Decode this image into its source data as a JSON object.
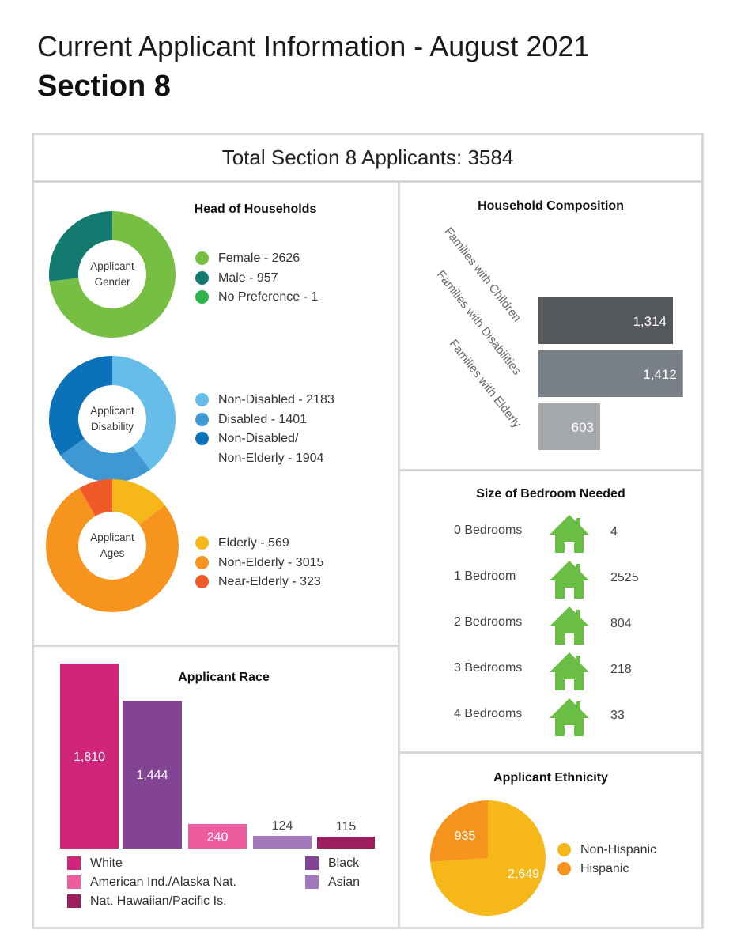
{
  "header": {
    "title": "Current Applicant Information - August 2021",
    "subtitle": "Section 8",
    "total": "Total Section 8 Applicants: 3584"
  },
  "head_of_households": {
    "title": "Head of Households"
  },
  "chart_data": [
    {
      "id": "gender",
      "type": "pie",
      "center_label": [
        "Applicant",
        "Gender"
      ],
      "slices": [
        {
          "name": "No Preference",
          "value": 1,
          "color": "#2db34a",
          "legend": "No Preference - 1"
        },
        {
          "name": "Female",
          "value": 2626,
          "color": "#76bf43",
          "legend": "Female - 2626"
        },
        {
          "name": "Male",
          "value": 957,
          "color": "#127a6f",
          "legend": "Male - 957"
        }
      ],
      "legend_order": [
        1,
        2,
        0
      ]
    },
    {
      "id": "disability",
      "type": "pie",
      "center_label": [
        "Applicant",
        "Disability"
      ],
      "slices": [
        {
          "name": "Non-Disabled",
          "value": 2183,
          "color": "#67bdea",
          "legend": "Non-Disabled - 2183"
        },
        {
          "name": "Disabled",
          "value": 1401,
          "color": "#3f97d4",
          "legend": "Disabled - 1401"
        },
        {
          "name": "Non-Disabled/ Non-Elderly",
          "value": 1904,
          "color": "#0b72b9",
          "legend": "Non-Disabled/",
          "legend2": "Non-Elderly - 1904"
        }
      ],
      "legend_order": [
        0,
        1,
        2
      ]
    },
    {
      "id": "ages",
      "type": "pie",
      "center_label": [
        "Applicant",
        "Ages"
      ],
      "slices": [
        {
          "name": "Elderly",
          "value": 569,
          "color": "#f6b719",
          "legend": "Elderly - 569"
        },
        {
          "name": "Non-Elderly",
          "value": 3015,
          "color": "#f7941e",
          "legend": "Non-Elderly - 3015"
        },
        {
          "name": "Near-Elderly",
          "value": 323,
          "color": "#f05a28",
          "legend": "Near-Elderly - 323"
        }
      ],
      "legend_order": [
        0,
        1,
        2
      ]
    },
    {
      "id": "household",
      "type": "bar",
      "orientation": "horizontal",
      "title": "Household Composition",
      "categories": [
        "Families with Children",
        "Families with Disabilities",
        "Families with Elderly"
      ],
      "values": [
        1314,
        1412,
        603
      ],
      "labels": [
        "1,314",
        "1,412",
        "603"
      ],
      "colors": [
        "#54585c",
        "#797f86",
        "#a6a9ab"
      ]
    },
    {
      "id": "bedrooms",
      "type": "table",
      "title": "Size of Bedroom Needed",
      "rows": [
        {
          "label": "0 Bedrooms",
          "value": "4"
        },
        {
          "label": "1 Bedroom",
          "value": "2525"
        },
        {
          "label": "2 Bedrooms",
          "value": "804"
        },
        {
          "label": "3 Bedrooms",
          "value": "218"
        },
        {
          "label": "4 Bedrooms",
          "value": "33"
        }
      ],
      "icon": "house-icon",
      "icon_color": "#6abd45"
    },
    {
      "id": "race",
      "type": "bar",
      "title": "Applicant Race",
      "categories": [
        "White",
        "Black",
        "American Ind./Alaska Nat.",
        "Asian",
        "Nat. Hawaiian/Pacific Is."
      ],
      "values": [
        1810,
        1444,
        240,
        124,
        115
      ],
      "labels": [
        "1,810",
        "1,444",
        "240",
        "124",
        "115"
      ],
      "colors": [
        "#cf257b",
        "#844494",
        "#ee5ca0",
        "#a377bb",
        "#9d1e5c"
      ]
    },
    {
      "id": "ethnicity",
      "type": "pie",
      "title": "Applicant Ethnicity",
      "slices": [
        {
          "name": "Non-Hispanic",
          "value": 2649,
          "label": "2,649",
          "color": "#f6b719"
        },
        {
          "name": "Hispanic",
          "value": 935,
          "label": "935",
          "color": "#f7941e"
        }
      ]
    }
  ]
}
